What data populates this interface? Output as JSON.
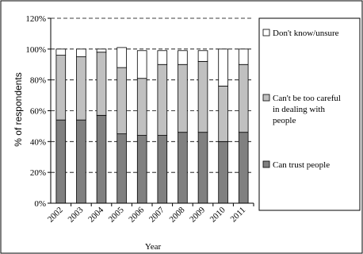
{
  "chart_data": {
    "type": "bar",
    "stacked": true,
    "categories": [
      "2002",
      "2003",
      "2004",
      "2005",
      "2006",
      "2007",
      "2008",
      "2009",
      "2010",
      "2011"
    ],
    "series": [
      {
        "name": "Can trust people",
        "color": "#808080",
        "values": [
          54,
          54,
          57,
          45,
          44,
          44,
          46,
          46,
          40,
          46
        ]
      },
      {
        "name": "Can't be too careful in dealing with people",
        "color": "#c0c0c0",
        "values": [
          42,
          41,
          41,
          43,
          37,
          46,
          44,
          46,
          36,
          44
        ]
      },
      {
        "name": "Don't know/unsure",
        "color": "#ffffff",
        "values": [
          4,
          5,
          2,
          13,
          18,
          9,
          9,
          7,
          24,
          10
        ]
      }
    ],
    "legend_labels": [
      [
        "Don't know/unsure"
      ],
      [
        "Can't be too careful",
        "in dealing with",
        "people"
      ],
      [
        "Can trust people"
      ]
    ],
    "legend_position": "right",
    "xlabel": "Year",
    "ylabel": "% of respondents",
    "ylim": [
      0,
      120
    ],
    "yticks": [
      "0%",
      "20%",
      "40%",
      "60%",
      "80%",
      "100%",
      "120%"
    ],
    "ytick_values": [
      0,
      20,
      40,
      60,
      80,
      100,
      120
    ],
    "grid": "dashed horizontal",
    "plot_background": "#ffffff",
    "bar_edge_color": "#000000"
  }
}
